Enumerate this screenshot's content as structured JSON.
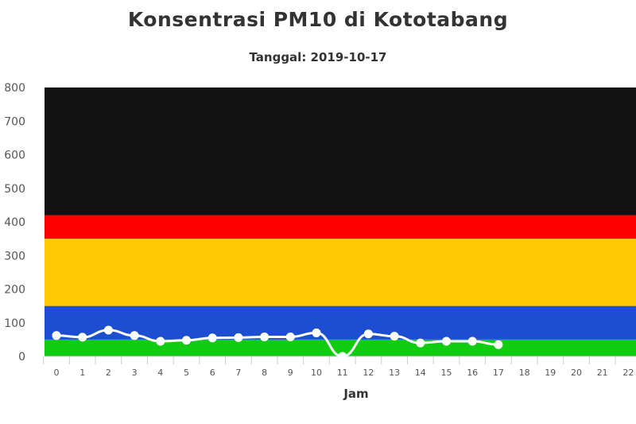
{
  "title": "Konsentrasi PM10 di Kototabang",
  "subtitle": "Tanggal: 2019-10-17",
  "chart_data": {
    "type": "line",
    "title": "Konsentrasi PM10 di Kototabang",
    "subtitle": "Tanggal: 2019-10-17",
    "xlabel": "Jam",
    "ylabel": "",
    "ylim": [
      0,
      800
    ],
    "xlim": [
      0,
      22
    ],
    "y_ticks": [
      0,
      100,
      200,
      300,
      400,
      500,
      600,
      700,
      800
    ],
    "x_ticks": [
      0,
      1,
      2,
      3,
      4,
      5,
      6,
      7,
      8,
      9,
      10,
      11,
      12,
      13,
      14,
      15,
      16,
      17,
      18,
      19,
      20,
      21,
      22
    ],
    "bands": [
      {
        "from": 0,
        "to": 50,
        "color": "#11cc11"
      },
      {
        "from": 50,
        "to": 150,
        "color": "#1d4ed1"
      },
      {
        "from": 150,
        "to": 350,
        "color": "#ffc800"
      },
      {
        "from": 350,
        "to": 420,
        "color": "#ff0000"
      },
      {
        "from": 420,
        "to": 800,
        "color": "#111111"
      }
    ],
    "line_color": "#ffffff",
    "grid": false,
    "legend": "none",
    "series": [
      {
        "x": [
          0,
          1,
          2,
          3,
          4,
          5,
          6,
          7,
          8,
          9,
          10,
          11,
          12,
          13,
          14,
          15,
          16,
          17
        ],
        "values": [
          62,
          57,
          78,
          62,
          45,
          48,
          55,
          56,
          58,
          58,
          70,
          0,
          67,
          60,
          40,
          45,
          45,
          35
        ]
      }
    ]
  }
}
